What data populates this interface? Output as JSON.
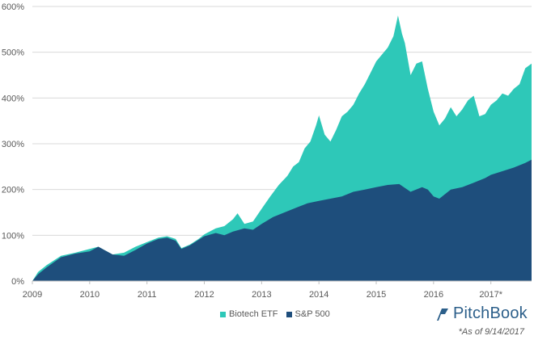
{
  "chart_data": {
    "type": "area",
    "x_tick_labels": [
      "2009",
      "2010",
      "2011",
      "2012",
      "2013",
      "2014",
      "2015",
      "2016",
      "2017*"
    ],
    "y_tick_labels": [
      "0%",
      "100%",
      "200%",
      "300%",
      "400%",
      "500%",
      "600%"
    ],
    "ylim": [
      0,
      600
    ],
    "xlim": [
      2009.0,
      2017.71
    ],
    "grid": "horizontal",
    "legend_position": "bottom-center",
    "series": [
      {
        "name": "Biotech ETF",
        "color": "#2ec8b8",
        "points": [
          [
            2009.0,
            0
          ],
          [
            2009.1,
            20
          ],
          [
            2009.25,
            35
          ],
          [
            2009.5,
            55
          ],
          [
            2009.75,
            62
          ],
          [
            2010.0,
            70
          ],
          [
            2010.15,
            75
          ],
          [
            2010.4,
            58
          ],
          [
            2010.6,
            62
          ],
          [
            2010.8,
            75
          ],
          [
            2011.0,
            85
          ],
          [
            2011.2,
            95
          ],
          [
            2011.35,
            98
          ],
          [
            2011.5,
            92
          ],
          [
            2011.6,
            72
          ],
          [
            2011.75,
            80
          ],
          [
            2011.9,
            92
          ],
          [
            2012.0,
            102
          ],
          [
            2012.2,
            115
          ],
          [
            2012.35,
            120
          ],
          [
            2012.5,
            135
          ],
          [
            2012.58,
            148
          ],
          [
            2012.7,
            125
          ],
          [
            2012.85,
            130
          ],
          [
            2013.0,
            158
          ],
          [
            2013.15,
            185
          ],
          [
            2013.3,
            210
          ],
          [
            2013.45,
            230
          ],
          [
            2013.55,
            250
          ],
          [
            2013.65,
            260
          ],
          [
            2013.75,
            290
          ],
          [
            2013.85,
            305
          ],
          [
            2013.95,
            340
          ],
          [
            2014.0,
            362
          ],
          [
            2014.1,
            320
          ],
          [
            2014.2,
            305
          ],
          [
            2014.3,
            330
          ],
          [
            2014.4,
            360
          ],
          [
            2014.5,
            370
          ],
          [
            2014.6,
            385
          ],
          [
            2014.7,
            410
          ],
          [
            2014.8,
            430
          ],
          [
            2014.9,
            455
          ],
          [
            2015.0,
            480
          ],
          [
            2015.1,
            495
          ],
          [
            2015.2,
            510
          ],
          [
            2015.3,
            535
          ],
          [
            2015.38,
            580
          ],
          [
            2015.45,
            540
          ],
          [
            2015.5,
            520
          ],
          [
            2015.6,
            450
          ],
          [
            2015.7,
            475
          ],
          [
            2015.8,
            480
          ],
          [
            2015.9,
            420
          ],
          [
            2016.0,
            370
          ],
          [
            2016.1,
            340
          ],
          [
            2016.2,
            355
          ],
          [
            2016.3,
            380
          ],
          [
            2016.4,
            360
          ],
          [
            2016.5,
            375
          ],
          [
            2016.6,
            395
          ],
          [
            2016.7,
            405
          ],
          [
            2016.8,
            360
          ],
          [
            2016.9,
            365
          ],
          [
            2017.0,
            385
          ],
          [
            2017.1,
            395
          ],
          [
            2017.2,
            410
          ],
          [
            2017.3,
            405
          ],
          [
            2017.4,
            420
          ],
          [
            2017.5,
            430
          ],
          [
            2017.6,
            465
          ],
          [
            2017.71,
            475
          ]
        ]
      },
      {
        "name": "S&P 500",
        "color": "#1e4e7c",
        "points": [
          [
            2009.0,
            0
          ],
          [
            2009.1,
            15
          ],
          [
            2009.25,
            30
          ],
          [
            2009.5,
            52
          ],
          [
            2009.75,
            60
          ],
          [
            2010.0,
            65
          ],
          [
            2010.15,
            75
          ],
          [
            2010.4,
            58
          ],
          [
            2010.6,
            55
          ],
          [
            2010.8,
            68
          ],
          [
            2011.0,
            82
          ],
          [
            2011.2,
            92
          ],
          [
            2011.35,
            95
          ],
          [
            2011.5,
            88
          ],
          [
            2011.6,
            70
          ],
          [
            2011.75,
            78
          ],
          [
            2011.9,
            90
          ],
          [
            2012.0,
            98
          ],
          [
            2012.2,
            105
          ],
          [
            2012.35,
            100
          ],
          [
            2012.5,
            108
          ],
          [
            2012.7,
            115
          ],
          [
            2012.85,
            112
          ],
          [
            2013.0,
            125
          ],
          [
            2013.2,
            140
          ],
          [
            2013.4,
            150
          ],
          [
            2013.6,
            160
          ],
          [
            2013.8,
            170
          ],
          [
            2014.0,
            175
          ],
          [
            2014.2,
            180
          ],
          [
            2014.4,
            185
          ],
          [
            2014.6,
            195
          ],
          [
            2014.8,
            200
          ],
          [
            2015.0,
            205
          ],
          [
            2015.2,
            210
          ],
          [
            2015.4,
            212
          ],
          [
            2015.6,
            195
          ],
          [
            2015.8,
            205
          ],
          [
            2015.9,
            200
          ],
          [
            2016.0,
            185
          ],
          [
            2016.1,
            180
          ],
          [
            2016.3,
            200
          ],
          [
            2016.5,
            205
          ],
          [
            2016.7,
            215
          ],
          [
            2016.9,
            225
          ],
          [
            2017.0,
            232
          ],
          [
            2017.2,
            240
          ],
          [
            2017.4,
            248
          ],
          [
            2017.6,
            258
          ],
          [
            2017.71,
            265
          ]
        ]
      }
    ]
  },
  "legend": {
    "items": [
      {
        "label": "Biotech ETF",
        "color": "#2ec8b8"
      },
      {
        "label": "S&P 500",
        "color": "#1e4e7c"
      }
    ]
  },
  "brand": {
    "name": "PitchBook"
  },
  "footnote": "*As of 9/14/2017"
}
